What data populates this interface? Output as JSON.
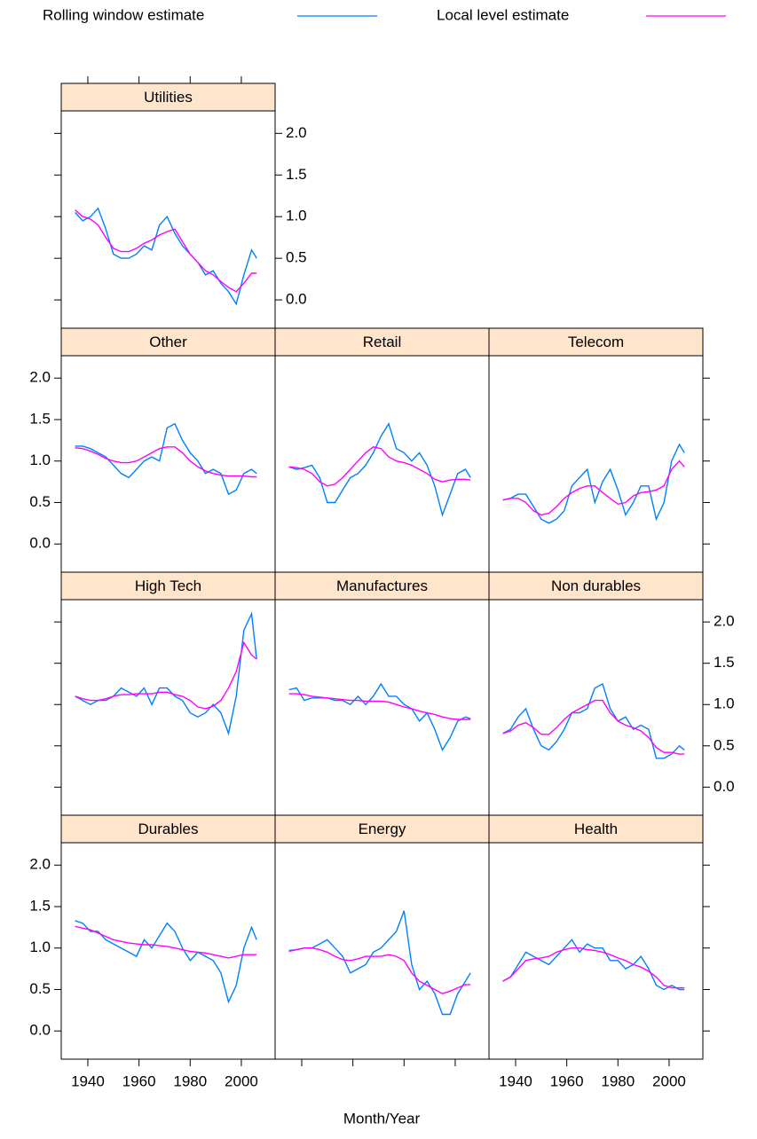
{
  "chart_data": {
    "type": "line",
    "x_label": "Month/Year",
    "series": [
      {
        "name": "Rolling window estimate",
        "color": "#0080ff"
      },
      {
        "name": "Local level estimate",
        "color": "#ff00ff"
      }
    ],
    "x": [
      1935,
      1938,
      1941,
      1944,
      1947,
      1950,
      1953,
      1956,
      1959,
      1962,
      1965,
      1968,
      1971,
      1974,
      1977,
      1980,
      1983,
      1986,
      1989,
      1992,
      1995,
      1998,
      2001,
      2004,
      2006
    ],
    "xlim": [
      1929.6,
      2013.2
    ],
    "xticks": [
      1940,
      1960,
      1980,
      2000
    ],
    "ylim": [
      -0.34,
      2.27
    ],
    "yticks": [
      {
        "value": 0,
        "label": "0.0"
      },
      {
        "value": 0.5,
        "label": "0.5"
      },
      {
        "value": 1,
        "label": "1.0"
      },
      {
        "value": 1.5,
        "label": "1.5"
      },
      {
        "value": 2,
        "label": "2.0"
      }
    ],
    "panels": [
      {
        "title": "Utilities",
        "series": [
          {
            "values": [
              1.05,
              0.95,
              1.0,
              1.1,
              0.85,
              0.55,
              0.5,
              0.5,
              0.55,
              0.65,
              0.6,
              0.9,
              1.0,
              0.8,
              0.65,
              0.55,
              0.45,
              0.3,
              0.35,
              0.2,
              0.1,
              -0.05,
              0.3,
              0.6,
              0.5
            ]
          },
          {
            "values": [
              1.08,
              1.0,
              0.97,
              0.9,
              0.75,
              0.62,
              0.58,
              0.58,
              0.62,
              0.68,
              0.72,
              0.78,
              0.82,
              0.85,
              0.7,
              0.55,
              0.45,
              0.35,
              0.3,
              0.22,
              0.15,
              0.1,
              0.2,
              0.32,
              0.32
            ]
          }
        ]
      },
      {
        "title": "Other",
        "series": [
          {
            "values": [
              1.18,
              1.18,
              1.15,
              1.1,
              1.05,
              0.95,
              0.85,
              0.8,
              0.9,
              1.0,
              1.05,
              1.0,
              1.4,
              1.45,
              1.25,
              1.1,
              1.0,
              0.85,
              0.9,
              0.85,
              0.6,
              0.65,
              0.85,
              0.9,
              0.85
            ]
          },
          {
            "values": [
              1.16,
              1.15,
              1.12,
              1.08,
              1.03,
              1.0,
              0.98,
              0.98,
              1.0,
              1.05,
              1.1,
              1.15,
              1.17,
              1.17,
              1.1,
              1.0,
              0.93,
              0.88,
              0.85,
              0.83,
              0.82,
              0.82,
              0.82,
              0.81,
              0.81
            ]
          }
        ]
      },
      {
        "title": "Retail",
        "series": [
          {
            "values": [
              0.93,
              0.9,
              0.92,
              0.95,
              0.8,
              0.5,
              0.5,
              0.65,
              0.8,
              0.85,
              0.95,
              1.1,
              1.3,
              1.45,
              1.15,
              1.1,
              1.0,
              1.1,
              0.95,
              0.7,
              0.35,
              0.6,
              0.85,
              0.9,
              0.8
            ]
          },
          {
            "values": [
              0.93,
              0.92,
              0.9,
              0.85,
              0.75,
              0.7,
              0.72,
              0.8,
              0.9,
              1.0,
              1.1,
              1.17,
              1.15,
              1.05,
              1.0,
              0.98,
              0.95,
              0.9,
              0.85,
              0.78,
              0.75,
              0.77,
              0.78,
              0.78,
              0.77
            ]
          }
        ]
      },
      {
        "title": "Telecom",
        "series": [
          {
            "values": [
              0.53,
              0.55,
              0.6,
              0.6,
              0.45,
              0.3,
              0.25,
              0.3,
              0.4,
              0.7,
              0.8,
              0.9,
              0.5,
              0.75,
              0.9,
              0.65,
              0.35,
              0.5,
              0.7,
              0.7,
              0.3,
              0.5,
              1.0,
              1.2,
              1.1
            ]
          },
          {
            "values": [
              0.53,
              0.55,
              0.55,
              0.5,
              0.4,
              0.35,
              0.37,
              0.45,
              0.55,
              0.62,
              0.67,
              0.7,
              0.7,
              0.62,
              0.55,
              0.48,
              0.5,
              0.58,
              0.62,
              0.63,
              0.65,
              0.7,
              0.9,
              1.0,
              0.93
            ]
          }
        ]
      },
      {
        "title": "High Tech",
        "series": [
          {
            "values": [
              1.1,
              1.05,
              1.0,
              1.05,
              1.05,
              1.1,
              1.2,
              1.15,
              1.1,
              1.2,
              1.0,
              1.2,
              1.2,
              1.1,
              1.05,
              0.9,
              0.85,
              0.9,
              1.0,
              0.9,
              0.65,
              1.1,
              1.9,
              2.1,
              1.55
            ]
          },
          {
            "values": [
              1.1,
              1.07,
              1.05,
              1.05,
              1.07,
              1.1,
              1.12,
              1.12,
              1.13,
              1.13,
              1.13,
              1.15,
              1.15,
              1.12,
              1.1,
              1.05,
              0.97,
              0.95,
              0.98,
              1.05,
              1.2,
              1.4,
              1.75,
              1.6,
              1.55
            ]
          }
        ]
      },
      {
        "title": "Manufactures",
        "series": [
          {
            "values": [
              1.18,
              1.2,
              1.05,
              1.08,
              1.08,
              1.08,
              1.05,
              1.05,
              1.0,
              1.1,
              1.0,
              1.1,
              1.25,
              1.1,
              1.1,
              1.0,
              0.95,
              0.8,
              0.9,
              0.7,
              0.45,
              0.6,
              0.8,
              0.85,
              0.83
            ]
          },
          {
            "values": [
              1.13,
              1.13,
              1.12,
              1.1,
              1.09,
              1.08,
              1.07,
              1.06,
              1.05,
              1.05,
              1.04,
              1.04,
              1.04,
              1.03,
              1.0,
              0.97,
              0.95,
              0.92,
              0.9,
              0.88,
              0.85,
              0.83,
              0.82,
              0.82,
              0.82
            ]
          }
        ]
      },
      {
        "title": "Non durables",
        "series": [
          {
            "values": [
              0.65,
              0.7,
              0.85,
              0.95,
              0.7,
              0.5,
              0.45,
              0.55,
              0.7,
              0.9,
              0.9,
              0.95,
              1.2,
              1.25,
              0.95,
              0.8,
              0.85,
              0.7,
              0.75,
              0.7,
              0.35,
              0.35,
              0.4,
              0.5,
              0.45
            ]
          },
          {
            "values": [
              0.65,
              0.68,
              0.75,
              0.78,
              0.72,
              0.64,
              0.64,
              0.72,
              0.82,
              0.9,
              0.95,
              1.0,
              1.05,
              1.05,
              0.9,
              0.8,
              0.75,
              0.72,
              0.68,
              0.6,
              0.48,
              0.42,
              0.42,
              0.4,
              0.4
            ]
          }
        ]
      },
      {
        "title": "Durables",
        "series": [
          {
            "values": [
              1.33,
              1.3,
              1.2,
              1.2,
              1.1,
              1.05,
              1.0,
              0.95,
              0.9,
              1.1,
              1.0,
              1.15,
              1.3,
              1.2,
              1.0,
              0.85,
              0.95,
              0.9,
              0.85,
              0.7,
              0.35,
              0.55,
              1.0,
              1.25,
              1.1
            ]
          },
          {
            "values": [
              1.26,
              1.24,
              1.22,
              1.18,
              1.14,
              1.1,
              1.08,
              1.06,
              1.05,
              1.04,
              1.04,
              1.03,
              1.02,
              1.0,
              0.98,
              0.96,
              0.95,
              0.94,
              0.92,
              0.9,
              0.88,
              0.9,
              0.92,
              0.92,
              0.92
            ]
          }
        ]
      },
      {
        "title": "Energy",
        "series": [
          {
            "values": [
              0.97,
              0.98,
              1.0,
              1.0,
              1.05,
              1.1,
              1.0,
              0.9,
              0.7,
              0.75,
              0.8,
              0.95,
              1.0,
              1.1,
              1.2,
              1.45,
              0.8,
              0.5,
              0.6,
              0.45,
              0.2,
              0.2,
              0.45,
              0.6,
              0.7
            ]
          },
          {
            "values": [
              0.96,
              0.98,
              1.0,
              1.0,
              0.98,
              0.95,
              0.9,
              0.86,
              0.85,
              0.87,
              0.9,
              0.9,
              0.9,
              0.92,
              0.9,
              0.85,
              0.7,
              0.6,
              0.55,
              0.5,
              0.45,
              0.48,
              0.52,
              0.56,
              0.56
            ]
          }
        ]
      },
      {
        "title": "Health",
        "series": [
          {
            "values": [
              0.6,
              0.65,
              0.8,
              0.95,
              0.9,
              0.85,
              0.8,
              0.9,
              1.0,
              1.1,
              0.95,
              1.05,
              1.0,
              1.0,
              0.85,
              0.85,
              0.75,
              0.8,
              0.9,
              0.75,
              0.55,
              0.5,
              0.55,
              0.5,
              0.5
            ]
          },
          {
            "values": [
              0.6,
              0.65,
              0.75,
              0.85,
              0.87,
              0.88,
              0.9,
              0.95,
              0.98,
              1.0,
              1.0,
              0.98,
              0.97,
              0.95,
              0.92,
              0.88,
              0.85,
              0.8,
              0.77,
              0.72,
              0.65,
              0.55,
              0.52,
              0.52,
              0.52
            ]
          }
        ]
      }
    ]
  }
}
